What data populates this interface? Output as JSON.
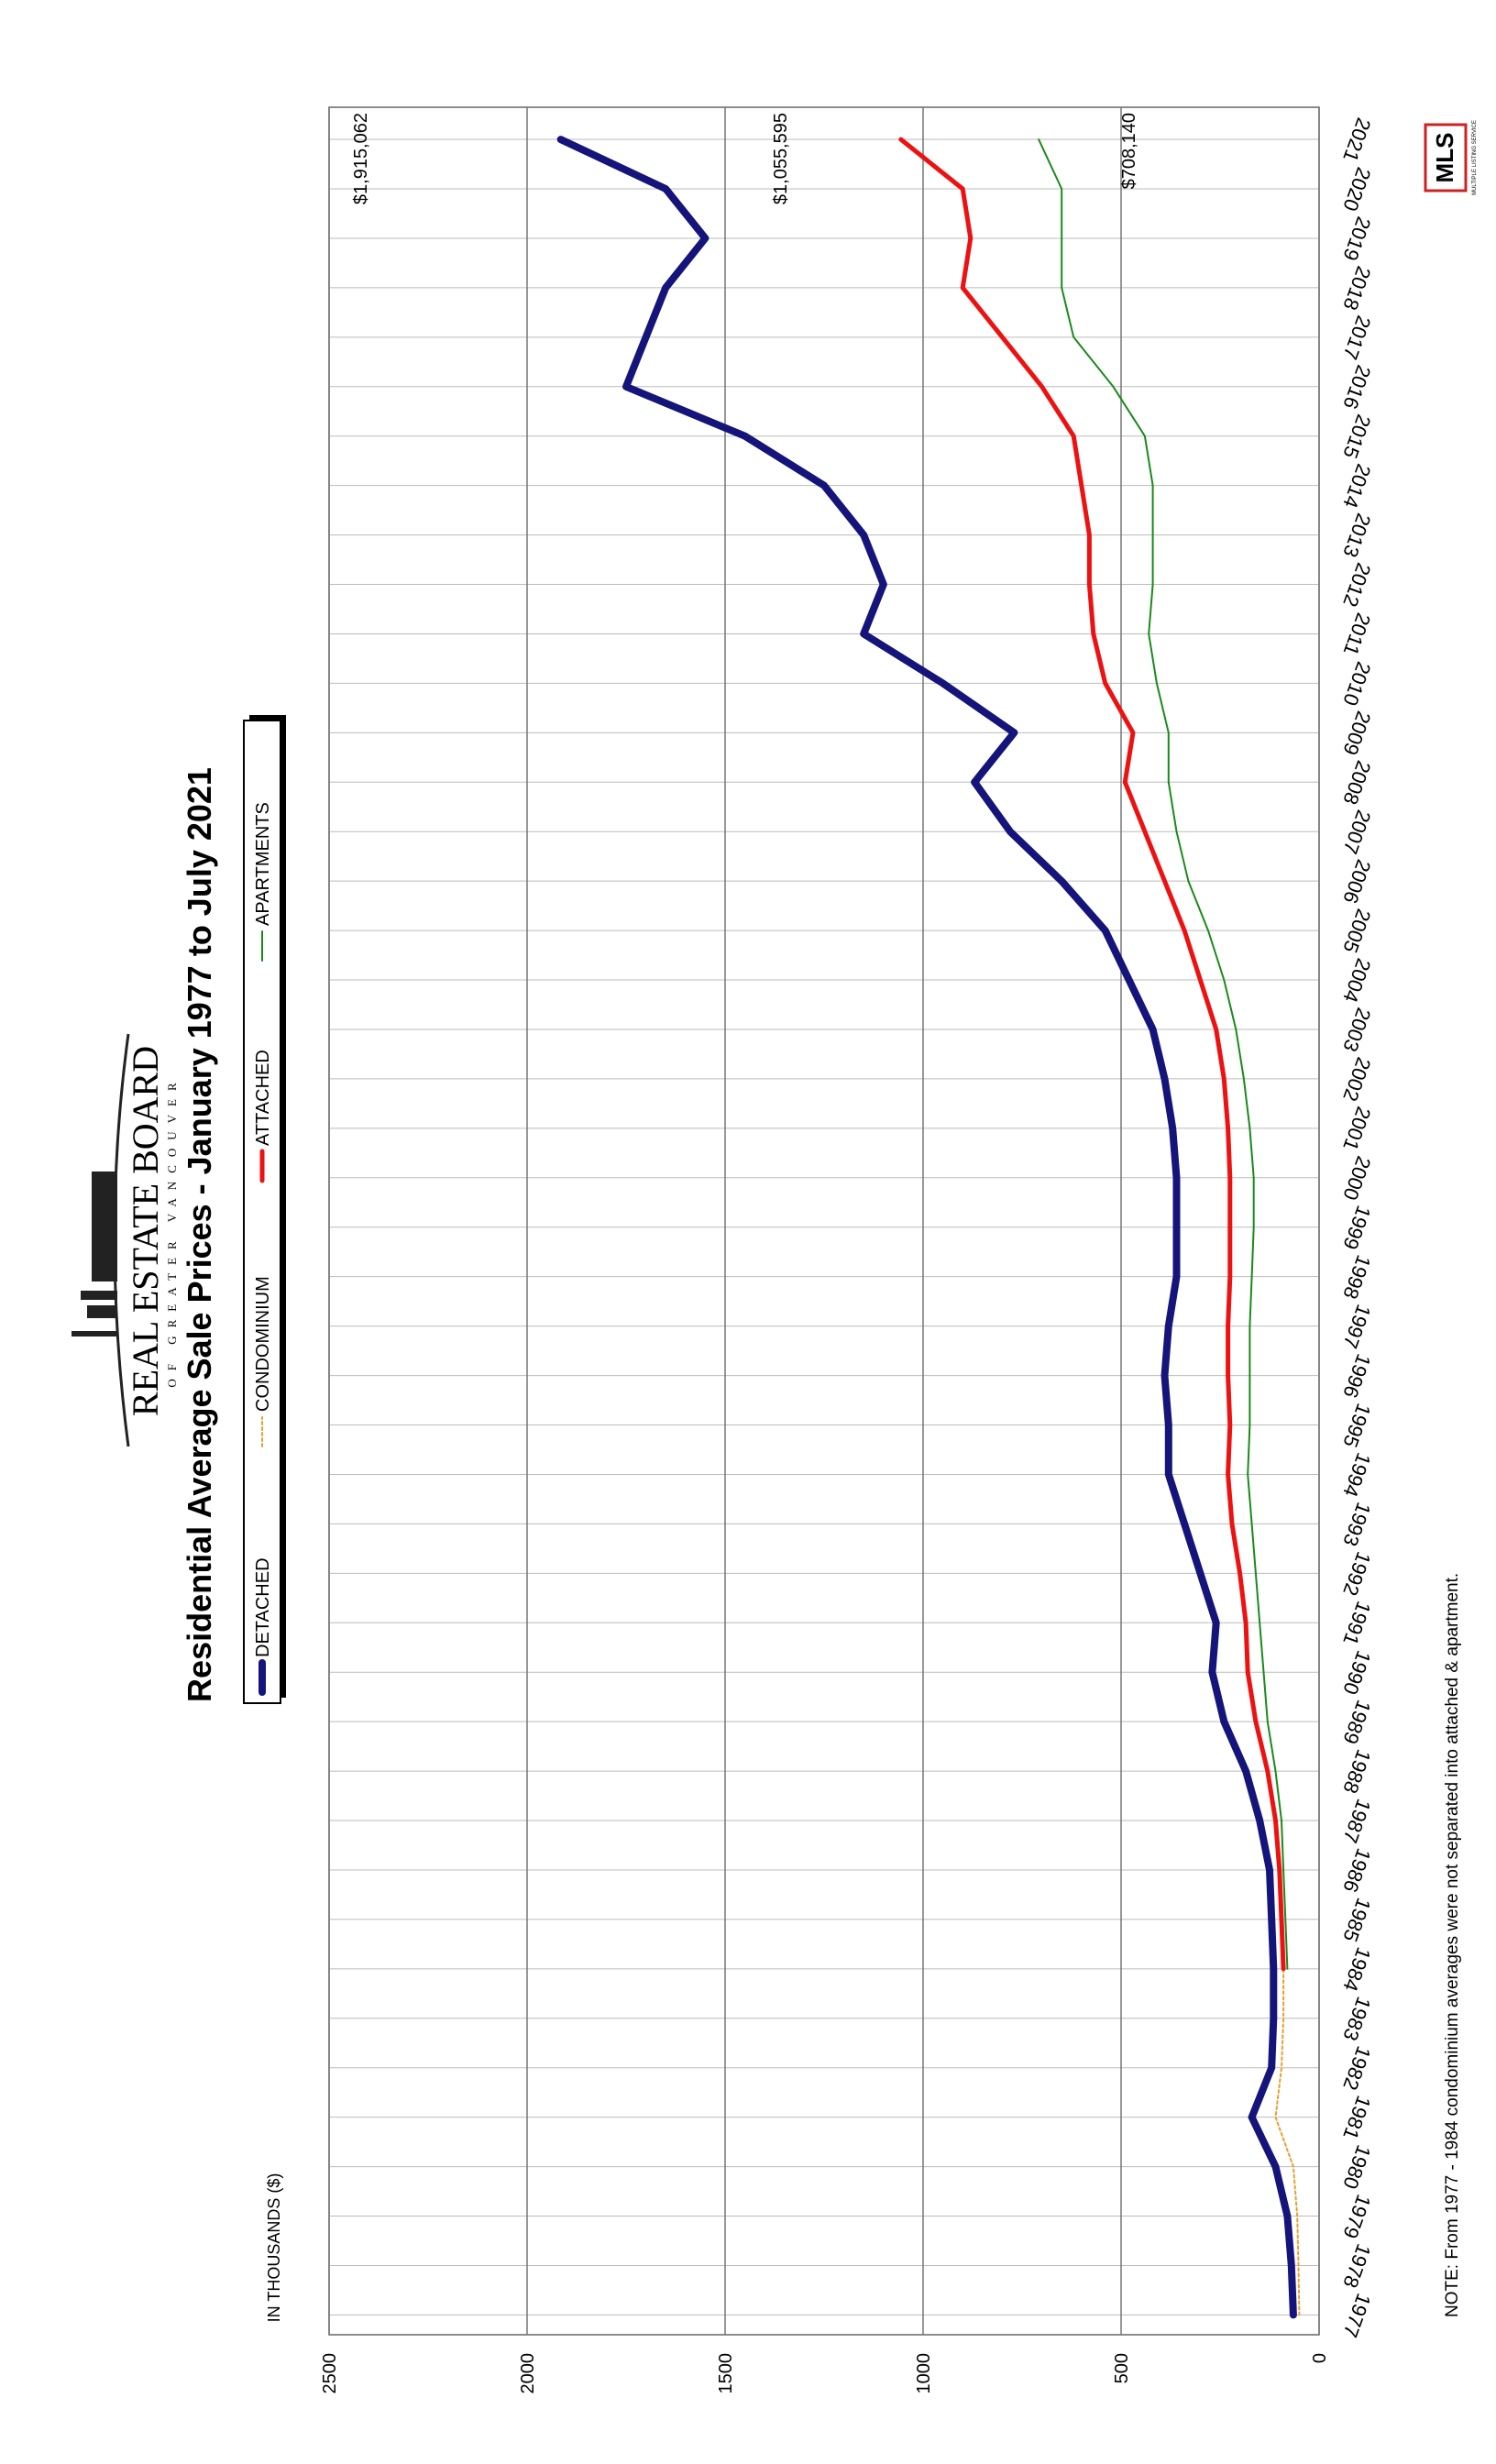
{
  "chart_data": {
    "type": "line",
    "title": "Residential Average Sale Prices  -  January 1977 to July 2021",
    "y_label": "IN THOUSANDS ($)",
    "note": "NOTE:  From 1977 - 1984 condominium averages were not separated into attached & apartment.",
    "logo": {
      "name": "REAL ESTATE BOARD",
      "sub": "OF GREATER VANCOUVER"
    },
    "mls_logo": {
      "name": "MLS",
      "sub": "MULTIPLE LISTING SERVICE"
    },
    "annotations": [
      "$1,915,062",
      "$1,055,595",
      "$708,140"
    ],
    "x": [
      1977,
      1978,
      1979,
      1980,
      1981,
      1982,
      1983,
      1984,
      1985,
      1986,
      1987,
      1988,
      1989,
      1990,
      1991,
      1992,
      1993,
      1994,
      1995,
      1996,
      1997,
      1998,
      1999,
      2000,
      2001,
      2002,
      2003,
      2004,
      2005,
      2006,
      2007,
      2008,
      2009,
      2010,
      2011,
      2012,
      2013,
      2014,
      2015,
      2016,
      2017,
      2018,
      2019,
      2020,
      2021
    ],
    "xlim": [
      1976.6,
      2021.65
    ],
    "xticks": [
      1977,
      1978,
      1979,
      1980,
      1981,
      1982,
      1983,
      1984,
      1985,
      1986,
      1987,
      1988,
      1989,
      1990,
      1991,
      1992,
      1993,
      1994,
      1995,
      1996,
      1997,
      1998,
      1999,
      2000,
      2001,
      2002,
      2003,
      2004,
      2005,
      2006,
      2007,
      2008,
      2009,
      2010,
      2011,
      2012,
      2013,
      2014,
      2015,
      2016,
      2017,
      2018,
      2019,
      2020,
      2021
    ],
    "ylim": [
      0,
      2500
    ],
    "yticks": [
      0,
      500,
      1000,
      1500,
      2000,
      2500
    ],
    "grid": true,
    "series": [
      {
        "name": "DETACHED",
        "color": "#14147a",
        "values": [
          65,
          70,
          80,
          110,
          170,
          120,
          115,
          115,
          120,
          125,
          150,
          185,
          240,
          270,
          260,
          300,
          340,
          380,
          380,
          390,
          380,
          360,
          360,
          360,
          370,
          390,
          420,
          480,
          540,
          650,
          780,
          870,
          770,
          950,
          1150,
          1100,
          1150,
          1250,
          1450,
          1750,
          1700,
          1650,
          1550,
          1650,
          1915
        ]
      },
      {
        "name": "CONDOMINIUM",
        "color": "#e8a030",
        "values": [
          50,
          52,
          55,
          65,
          110,
          95,
          90,
          90,
          null,
          null,
          null,
          null,
          null,
          null,
          null,
          null,
          null,
          null,
          null,
          null,
          null,
          null,
          null,
          null,
          null,
          null,
          null,
          null,
          null,
          null,
          null,
          null,
          null,
          null,
          null,
          null,
          null,
          null,
          null,
          null,
          null,
          null,
          null,
          null,
          null
        ]
      },
      {
        "name": "ATTACHED",
        "color": "#ee1111",
        "values": [
          null,
          null,
          null,
          null,
          null,
          null,
          null,
          90,
          95,
          100,
          110,
          130,
          160,
          180,
          185,
          200,
          220,
          230,
          225,
          230,
          230,
          225,
          225,
          225,
          230,
          240,
          260,
          300,
          340,
          390,
          440,
          490,
          470,
          540,
          570,
          580,
          580,
          600,
          620,
          700,
          800,
          900,
          880,
          900,
          1056
        ]
      },
      {
        "name": "APARTMENTS",
        "color": "#1a8a1a",
        "values": [
          null,
          null,
          null,
          null,
          null,
          null,
          null,
          80,
          85,
          90,
          95,
          110,
          130,
          140,
          150,
          160,
          170,
          180,
          175,
          175,
          175,
          170,
          165,
          165,
          175,
          190,
          210,
          240,
          280,
          330,
          360,
          380,
          380,
          410,
          430,
          420,
          420,
          420,
          440,
          520,
          620,
          650,
          650,
          650,
          708
        ]
      }
    ]
  }
}
